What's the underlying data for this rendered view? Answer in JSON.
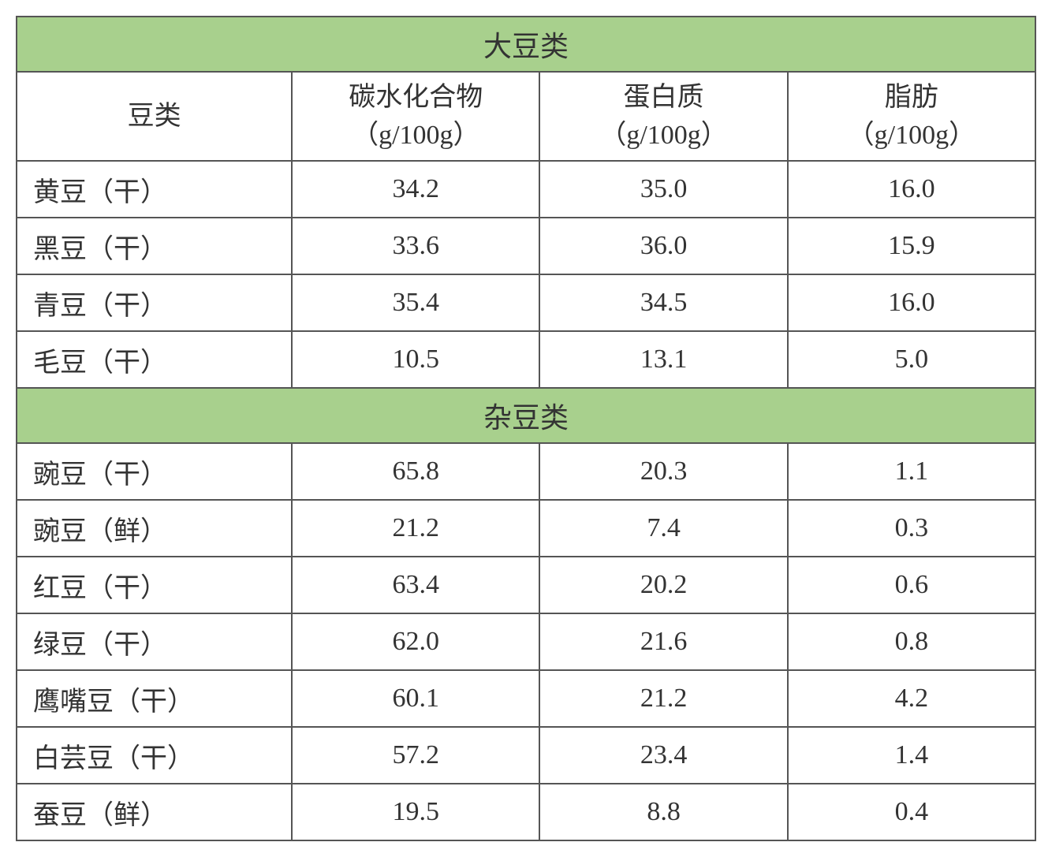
{
  "table": {
    "sections": [
      {
        "title": "大豆类",
        "columns": [
          {
            "label": "豆类"
          },
          {
            "label_line1": "碳水化合物",
            "label_line2": "（g/100g）"
          },
          {
            "label_line1": "蛋白质",
            "label_line2": "（g/100g）"
          },
          {
            "label_line1": "脂肪",
            "label_line2": "（g/100g）"
          }
        ],
        "rows": [
          {
            "name": "黄豆（干）",
            "carb": "34.2",
            "protein": "35.0",
            "fat": "16.0"
          },
          {
            "name": "黑豆（干）",
            "carb": "33.6",
            "protein": "36.0",
            "fat": "15.9"
          },
          {
            "name": "青豆（干）",
            "carb": "35.4",
            "protein": "34.5",
            "fat": "16.0"
          },
          {
            "name": "毛豆（干）",
            "carb": "10.5",
            "protein": "13.1",
            "fat": "5.0"
          }
        ]
      },
      {
        "title": "杂豆类",
        "rows": [
          {
            "name": "豌豆（干）",
            "carb": "65.8",
            "protein": "20.3",
            "fat": "1.1"
          },
          {
            "name": "豌豆（鲜）",
            "carb": "21.2",
            "protein": "7.4",
            "fat": "0.3"
          },
          {
            "name": "红豆（干）",
            "carb": "63.4",
            "protein": "20.2",
            "fat": "0.6"
          },
          {
            "name": "绿豆（干）",
            "carb": "62.0",
            "protein": "21.6",
            "fat": "0.8"
          },
          {
            "name": "鹰嘴豆（干）",
            "carb": "60.1",
            "protein": "21.2",
            "fat": "4.2"
          },
          {
            "name": "白芸豆（干）",
            "carb": "57.2",
            "protein": "23.4",
            "fat": "1.4"
          },
          {
            "name": "蚕豆（鲜）",
            "carb": "19.5",
            "protein": "8.8",
            "fat": "0.4"
          }
        ]
      }
    ],
    "colors": {
      "section_header_bg": "#a8d08d",
      "border": "#555555",
      "text": "#333333",
      "background": "#ffffff"
    },
    "typography": {
      "font_family": "SimSun",
      "cell_fontsize": 34,
      "header_fontsize": 36
    }
  }
}
